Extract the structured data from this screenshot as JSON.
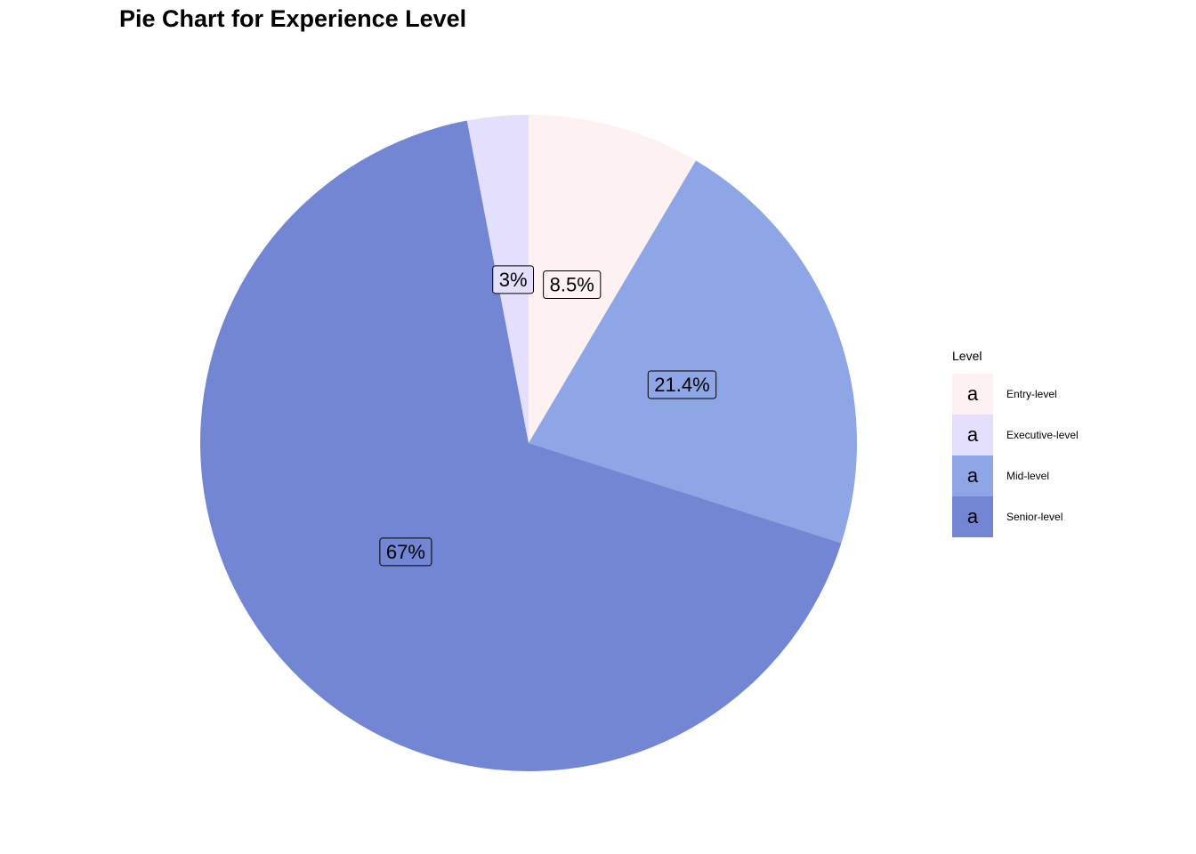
{
  "chart_data": {
    "type": "pie",
    "title": "Pie Chart for Experience Level",
    "legend_title": "Level",
    "legend_position": "right",
    "legend_key_glyph": "a",
    "categories": [
      "Entry-level",
      "Executive-level",
      "Mid-level",
      "Senior-level"
    ],
    "values": [
      8.5,
      3,
      21.4,
      67
    ],
    "labels": [
      "8.5%",
      "3%",
      "21.4%",
      "67%"
    ],
    "colors": [
      "#fdf1f1",
      "#e3dffd",
      "#8ea5e6",
      "#7386d3"
    ],
    "slice_order": [
      "Entry-level",
      "Mid-level",
      "Senior-level",
      "Executive-level"
    ],
    "start_angle": "12 o'clock",
    "direction": "clockwise"
  }
}
